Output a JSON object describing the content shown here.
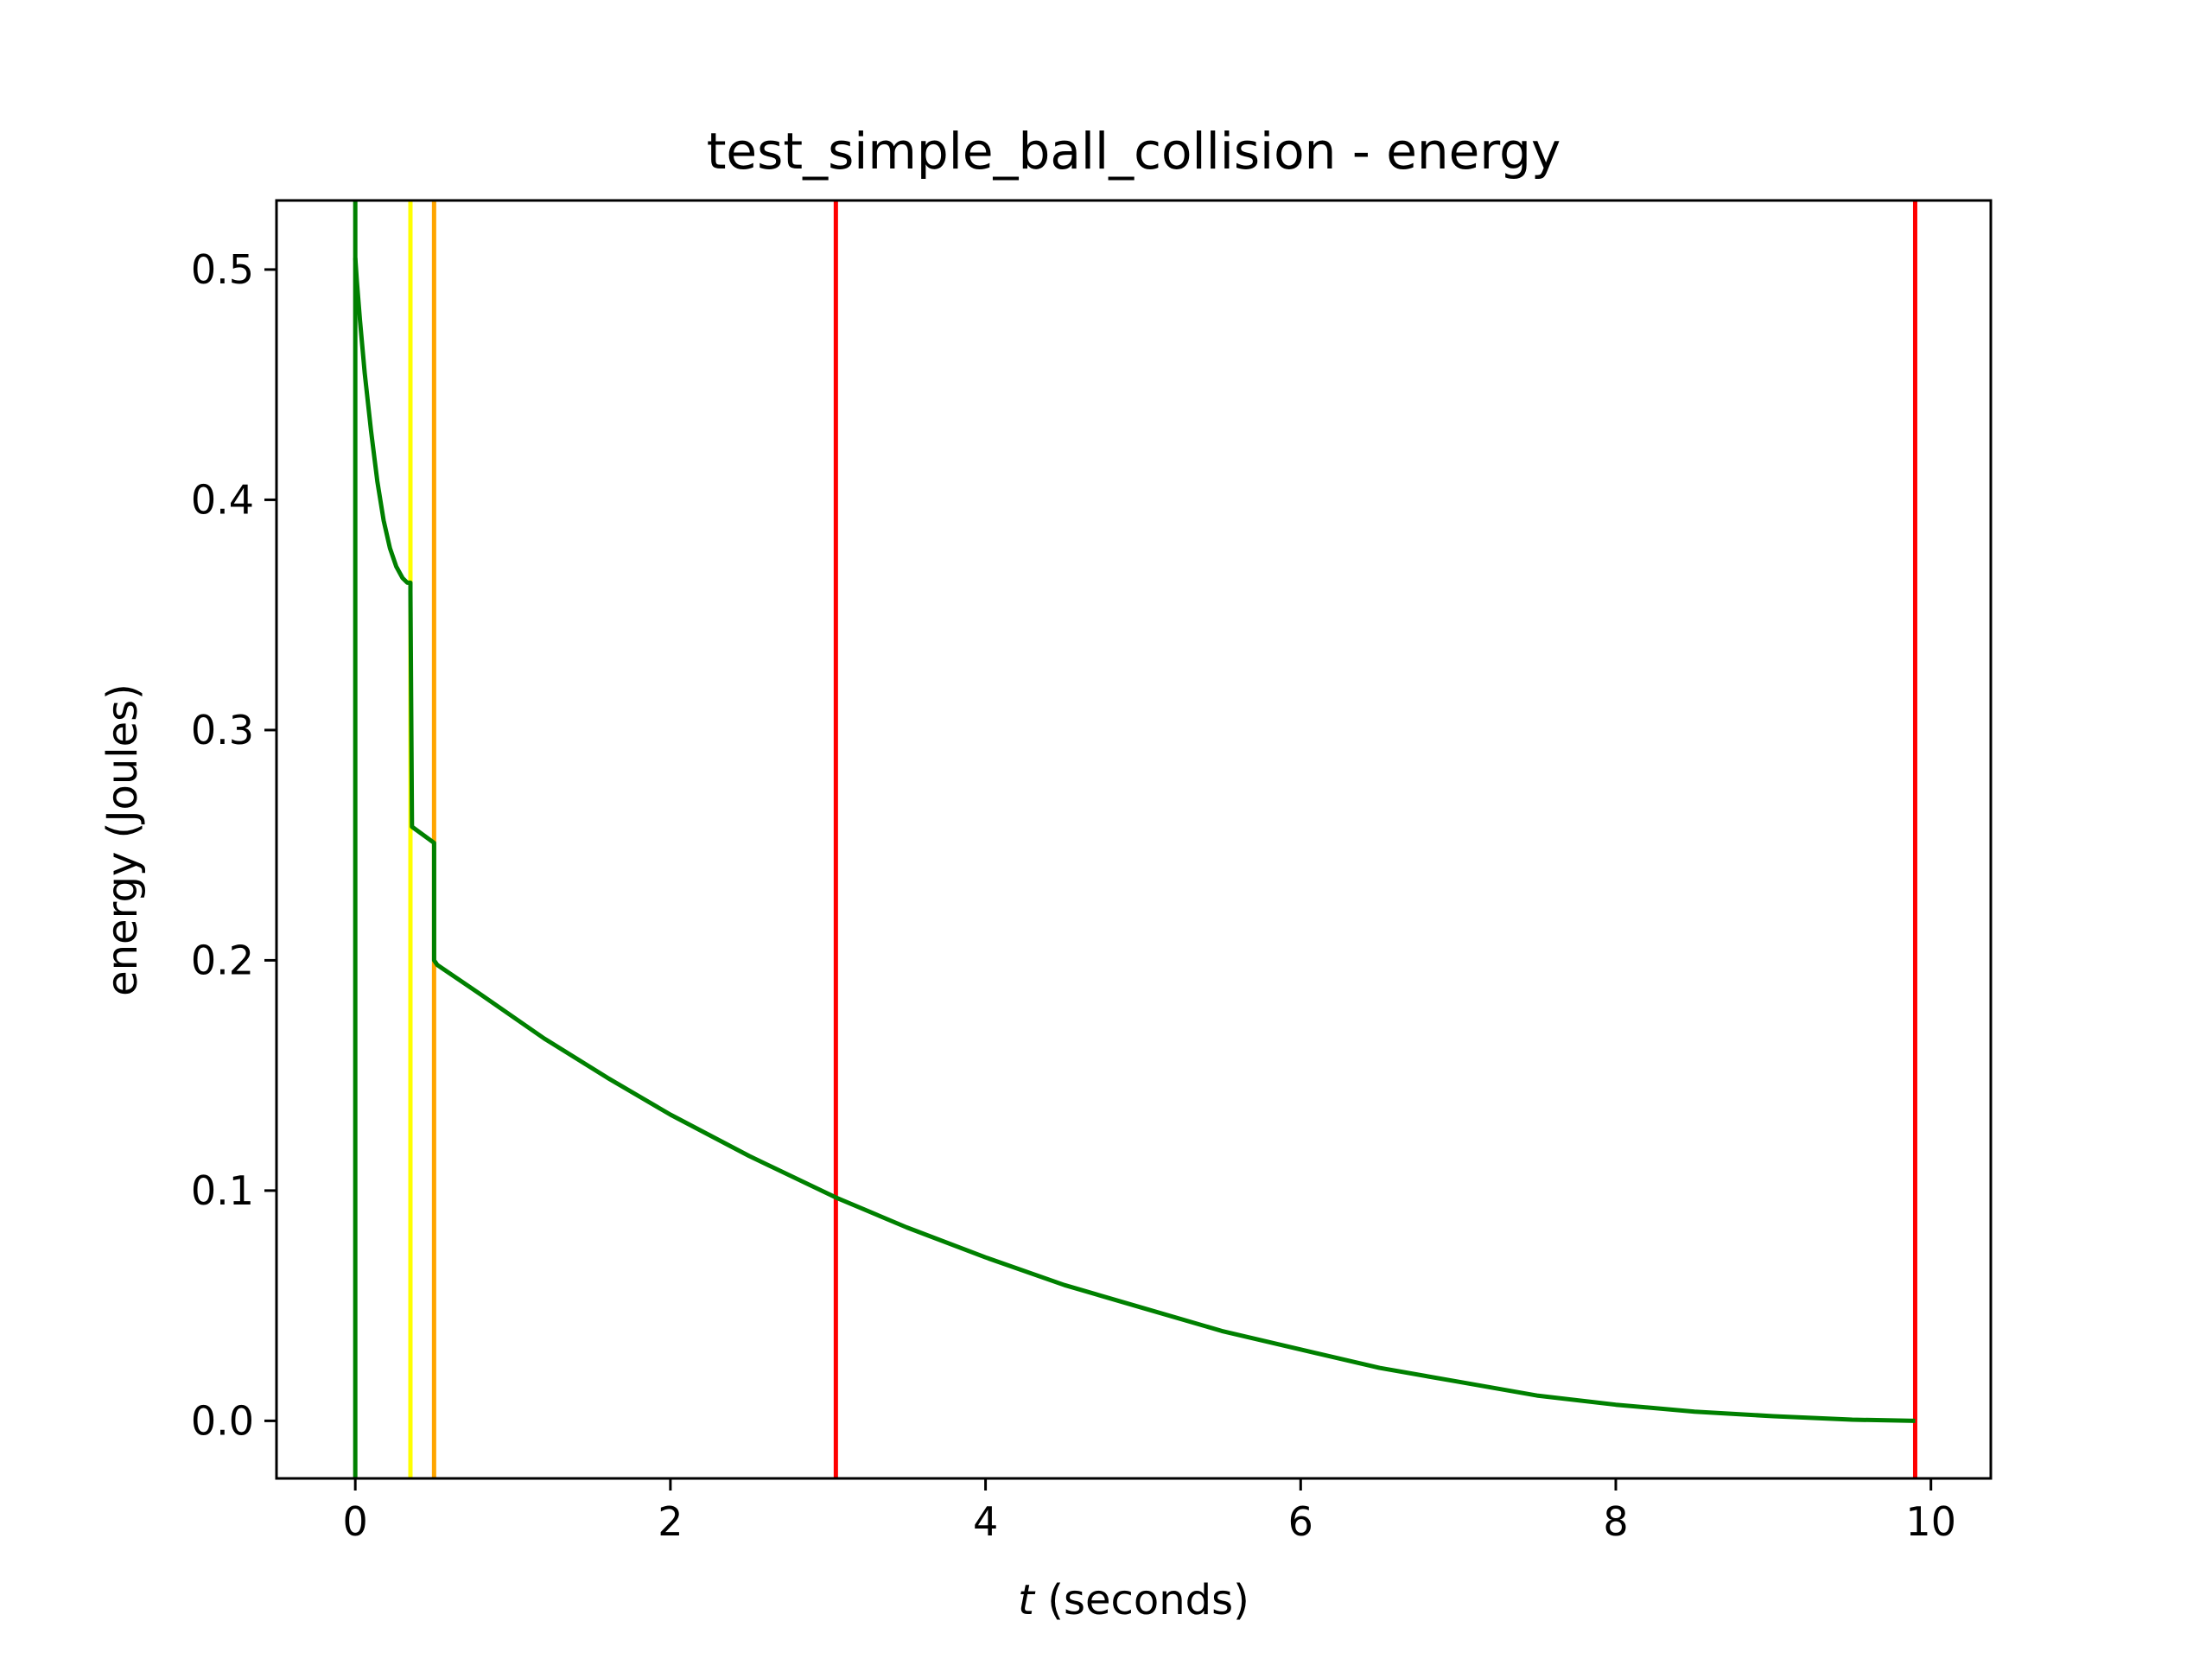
{
  "chart_data": {
    "type": "line",
    "title": "test_simple_ball_collision - energy",
    "xlabel_var": "t",
    "xlabel_rest": " (seconds)",
    "ylabel": "energy (Joules)",
    "xlim": [
      -0.5,
      10.38
    ],
    "ylim": [
      -0.025,
      0.53
    ],
    "xticks": [
      0,
      2,
      4,
      6,
      8,
      10
    ],
    "xtick_labels": [
      "0",
      "2",
      "4",
      "6",
      "8",
      "10"
    ],
    "yticks": [
      0.0,
      0.1,
      0.2,
      0.3,
      0.4,
      0.5
    ],
    "ytick_labels": [
      "0.0",
      "0.1",
      "0.2",
      "0.3",
      "0.4",
      "0.5"
    ],
    "grid": false,
    "vertical_lines": [
      {
        "x": 0.0,
        "color": "#008000"
      },
      {
        "x": 0.35,
        "color": "#ffff00"
      },
      {
        "x": 0.5,
        "color": "#ffa500"
      },
      {
        "x": 3.05,
        "color": "#ff0000"
      },
      {
        "x": 9.9,
        "color": "#ff0000"
      }
    ],
    "series": [
      {
        "color": "#008000",
        "x": [
          0.0,
          0.01,
          0.03,
          0.06,
          0.1,
          0.14,
          0.18,
          0.22,
          0.26,
          0.3,
          0.33,
          0.35,
          0.35,
          0.36,
          0.5,
          0.5,
          0.52,
          0.8,
          1.2,
          1.6,
          2.0,
          2.5,
          3.05,
          3.5,
          4.0,
          4.5,
          5.0,
          5.5,
          6.0,
          6.5,
          7.0,
          7.5,
          8.0,
          8.5,
          9.0,
          9.5,
          9.9
        ],
        "y": [
          0.505,
          0.495,
          0.478,
          0.455,
          0.43,
          0.408,
          0.391,
          0.379,
          0.371,
          0.366,
          0.364,
          0.364,
          0.36,
          0.258,
          0.251,
          0.2,
          0.198,
          0.185,
          0.166,
          0.149,
          0.133,
          0.115,
          0.097,
          0.084,
          0.071,
          0.059,
          0.049,
          0.039,
          0.031,
          0.023,
          0.017,
          0.011,
          0.007,
          0.004,
          0.002,
          0.0005,
          0.0
        ]
      }
    ]
  }
}
